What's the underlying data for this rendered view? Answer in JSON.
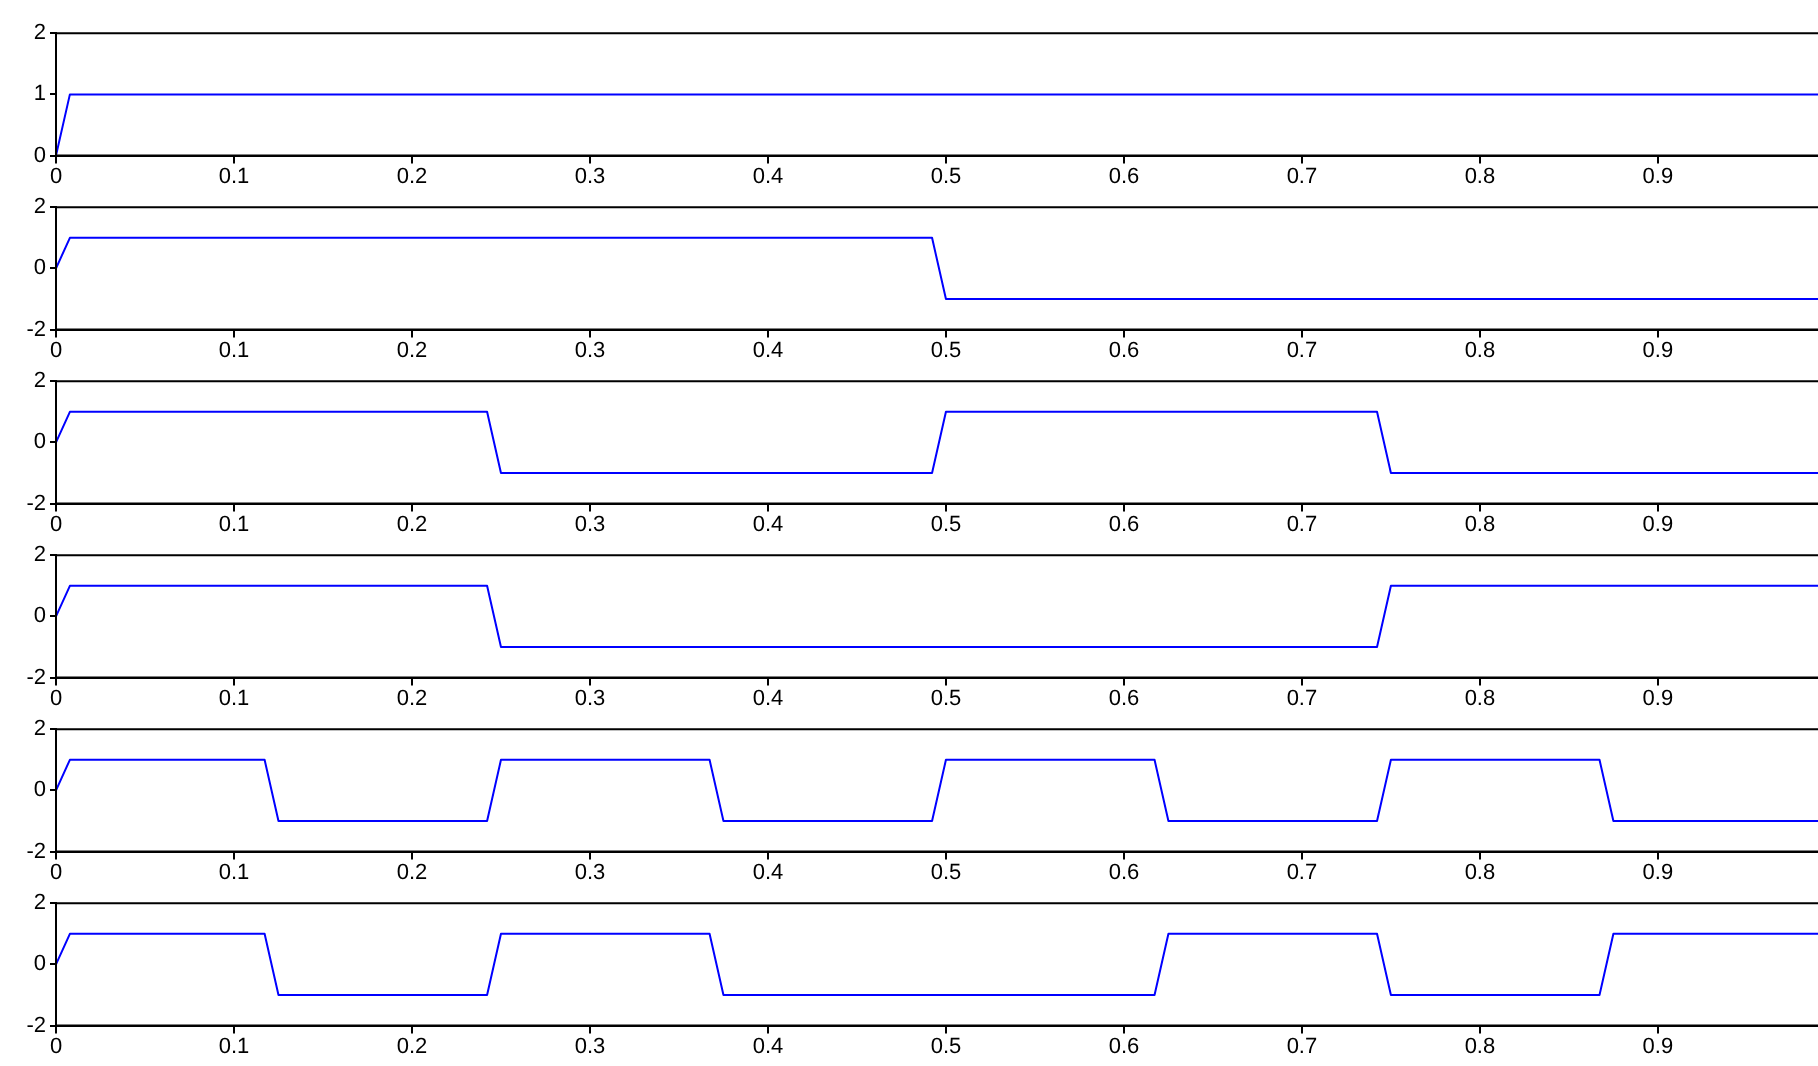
{
  "chart_data": [
    {
      "type": "line",
      "color": "#0000ff",
      "x": [
        0,
        0.0078,
        0.9922
      ],
      "values": [
        0,
        1,
        1
      ],
      "xlim": [
        0,
        0.9922
      ],
      "xticks": [
        0,
        0.1,
        0.2,
        0.3,
        0.4,
        0.5,
        0.6,
        0.7,
        0.8,
        0.9
      ],
      "ylim": [
        0,
        2
      ],
      "yticks": [
        0,
        1,
        2
      ],
      "grid": false,
      "legend": false
    },
    {
      "type": "line",
      "color": "#0000ff",
      "x": [
        0,
        0.0078,
        0.4922,
        0.5,
        0.9922
      ],
      "values": [
        0,
        1,
        1,
        -1,
        -1
      ],
      "xlim": [
        0,
        0.9922
      ],
      "xticks": [
        0,
        0.1,
        0.2,
        0.3,
        0.4,
        0.5,
        0.6,
        0.7,
        0.8,
        0.9
      ],
      "ylim": [
        -2,
        2
      ],
      "yticks": [
        -2,
        0,
        2
      ],
      "grid": false,
      "legend": false
    },
    {
      "type": "line",
      "color": "#0000ff",
      "x": [
        0,
        0.0078,
        0.2422,
        0.25,
        0.4922,
        0.5,
        0.7422,
        0.75,
        0.9922
      ],
      "values": [
        0,
        1,
        1,
        -1,
        -1,
        1,
        1,
        -1,
        -1
      ],
      "xlim": [
        0,
        0.9922
      ],
      "xticks": [
        0,
        0.1,
        0.2,
        0.3,
        0.4,
        0.5,
        0.6,
        0.7,
        0.8,
        0.9
      ],
      "ylim": [
        -2,
        2
      ],
      "yticks": [
        -2,
        0,
        2
      ],
      "grid": false,
      "legend": false
    },
    {
      "type": "line",
      "color": "#0000ff",
      "x": [
        0,
        0.0078,
        0.2422,
        0.25,
        0.7422,
        0.75,
        0.9922
      ],
      "values": [
        0,
        1,
        1,
        -1,
        -1,
        1,
        1
      ],
      "xlim": [
        0,
        0.9922
      ],
      "xticks": [
        0,
        0.1,
        0.2,
        0.3,
        0.4,
        0.5,
        0.6,
        0.7,
        0.8,
        0.9
      ],
      "ylim": [
        -2,
        2
      ],
      "yticks": [
        -2,
        0,
        2
      ],
      "grid": false,
      "legend": false
    },
    {
      "type": "line",
      "color": "#0000ff",
      "x": [
        0,
        0.0078,
        0.1172,
        0.125,
        0.2422,
        0.25,
        0.3672,
        0.375,
        0.4922,
        0.5,
        0.6172,
        0.625,
        0.7422,
        0.75,
        0.8672,
        0.875,
        0.9922
      ],
      "values": [
        0,
        1,
        1,
        -1,
        -1,
        1,
        1,
        -1,
        -1,
        1,
        1,
        -1,
        -1,
        1,
        1,
        -1,
        -1
      ],
      "xlim": [
        0,
        0.9922
      ],
      "xticks": [
        0,
        0.1,
        0.2,
        0.3,
        0.4,
        0.5,
        0.6,
        0.7,
        0.8,
        0.9
      ],
      "ylim": [
        -2,
        2
      ],
      "yticks": [
        -2,
        0,
        2
      ],
      "grid": false,
      "legend": false
    },
    {
      "type": "line",
      "color": "#0000ff",
      "x": [
        0,
        0.0078,
        0.1172,
        0.125,
        0.2422,
        0.25,
        0.3672,
        0.375,
        0.6172,
        0.625,
        0.7422,
        0.75,
        0.8672,
        0.875,
        0.9922
      ],
      "values": [
        0,
        1,
        1,
        -1,
        -1,
        1,
        1,
        -1,
        -1,
        1,
        1,
        -1,
        -1,
        1,
        1
      ],
      "xlim": [
        0,
        0.9922
      ],
      "xticks": [
        0,
        0.1,
        0.2,
        0.3,
        0.4,
        0.5,
        0.6,
        0.7,
        0.8,
        0.9
      ],
      "ylim": [
        -2,
        2
      ],
      "yticks": [
        -2,
        0,
        2
      ],
      "grid": false,
      "legend": false
    }
  ]
}
